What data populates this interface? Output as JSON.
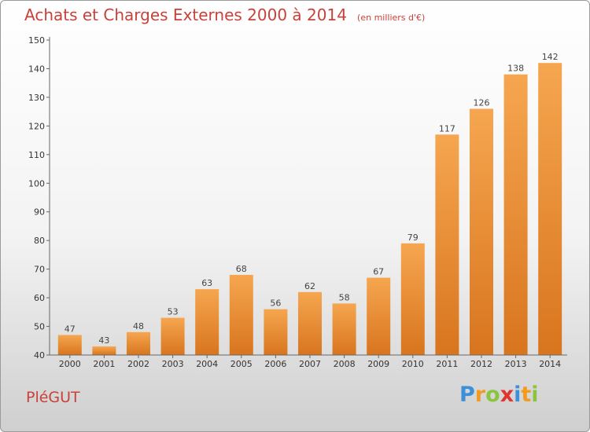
{
  "title": "Achats et Charges Externes 2000 à 2014",
  "subtitle": "(en milliers d'€)",
  "place": "PléGUT",
  "logo": {
    "text": "Proxiti",
    "letters": [
      {
        "ch": "P",
        "color": "#3d8fd8"
      },
      {
        "ch": "r",
        "color": "#f29b1f"
      },
      {
        "ch": "o",
        "color": "#8bc53f"
      },
      {
        "ch": "x",
        "color": "#e0342d"
      },
      {
        "ch": "i",
        "color": "#3d8fd8"
      },
      {
        "ch": "t",
        "color": "#f29b1f"
      },
      {
        "ch": "i",
        "color": "#8bc53f"
      }
    ]
  },
  "colors": {
    "accent": "#c8413a",
    "bar_top": "#f6a650",
    "bar_bottom": "#d8751e"
  },
  "chart_data": {
    "type": "bar",
    "title": "Achats et Charges Externes 2000 à 2014",
    "subtitle": "(en milliers d'€)",
    "xlabel": "",
    "ylabel": "",
    "categories": [
      "2000",
      "2001",
      "2002",
      "2003",
      "2004",
      "2005",
      "2006",
      "2007",
      "2008",
      "2009",
      "2010",
      "2011",
      "2012",
      "2013",
      "2014"
    ],
    "values": [
      47,
      43,
      48,
      53,
      63,
      68,
      56,
      62,
      58,
      67,
      79,
      117,
      126,
      138,
      142
    ],
    "ylim": [
      40,
      150
    ],
    "yticks": [
      40,
      50,
      60,
      70,
      80,
      90,
      100,
      110,
      120,
      130,
      140,
      150
    ],
    "grid": false,
    "legend": "none"
  }
}
